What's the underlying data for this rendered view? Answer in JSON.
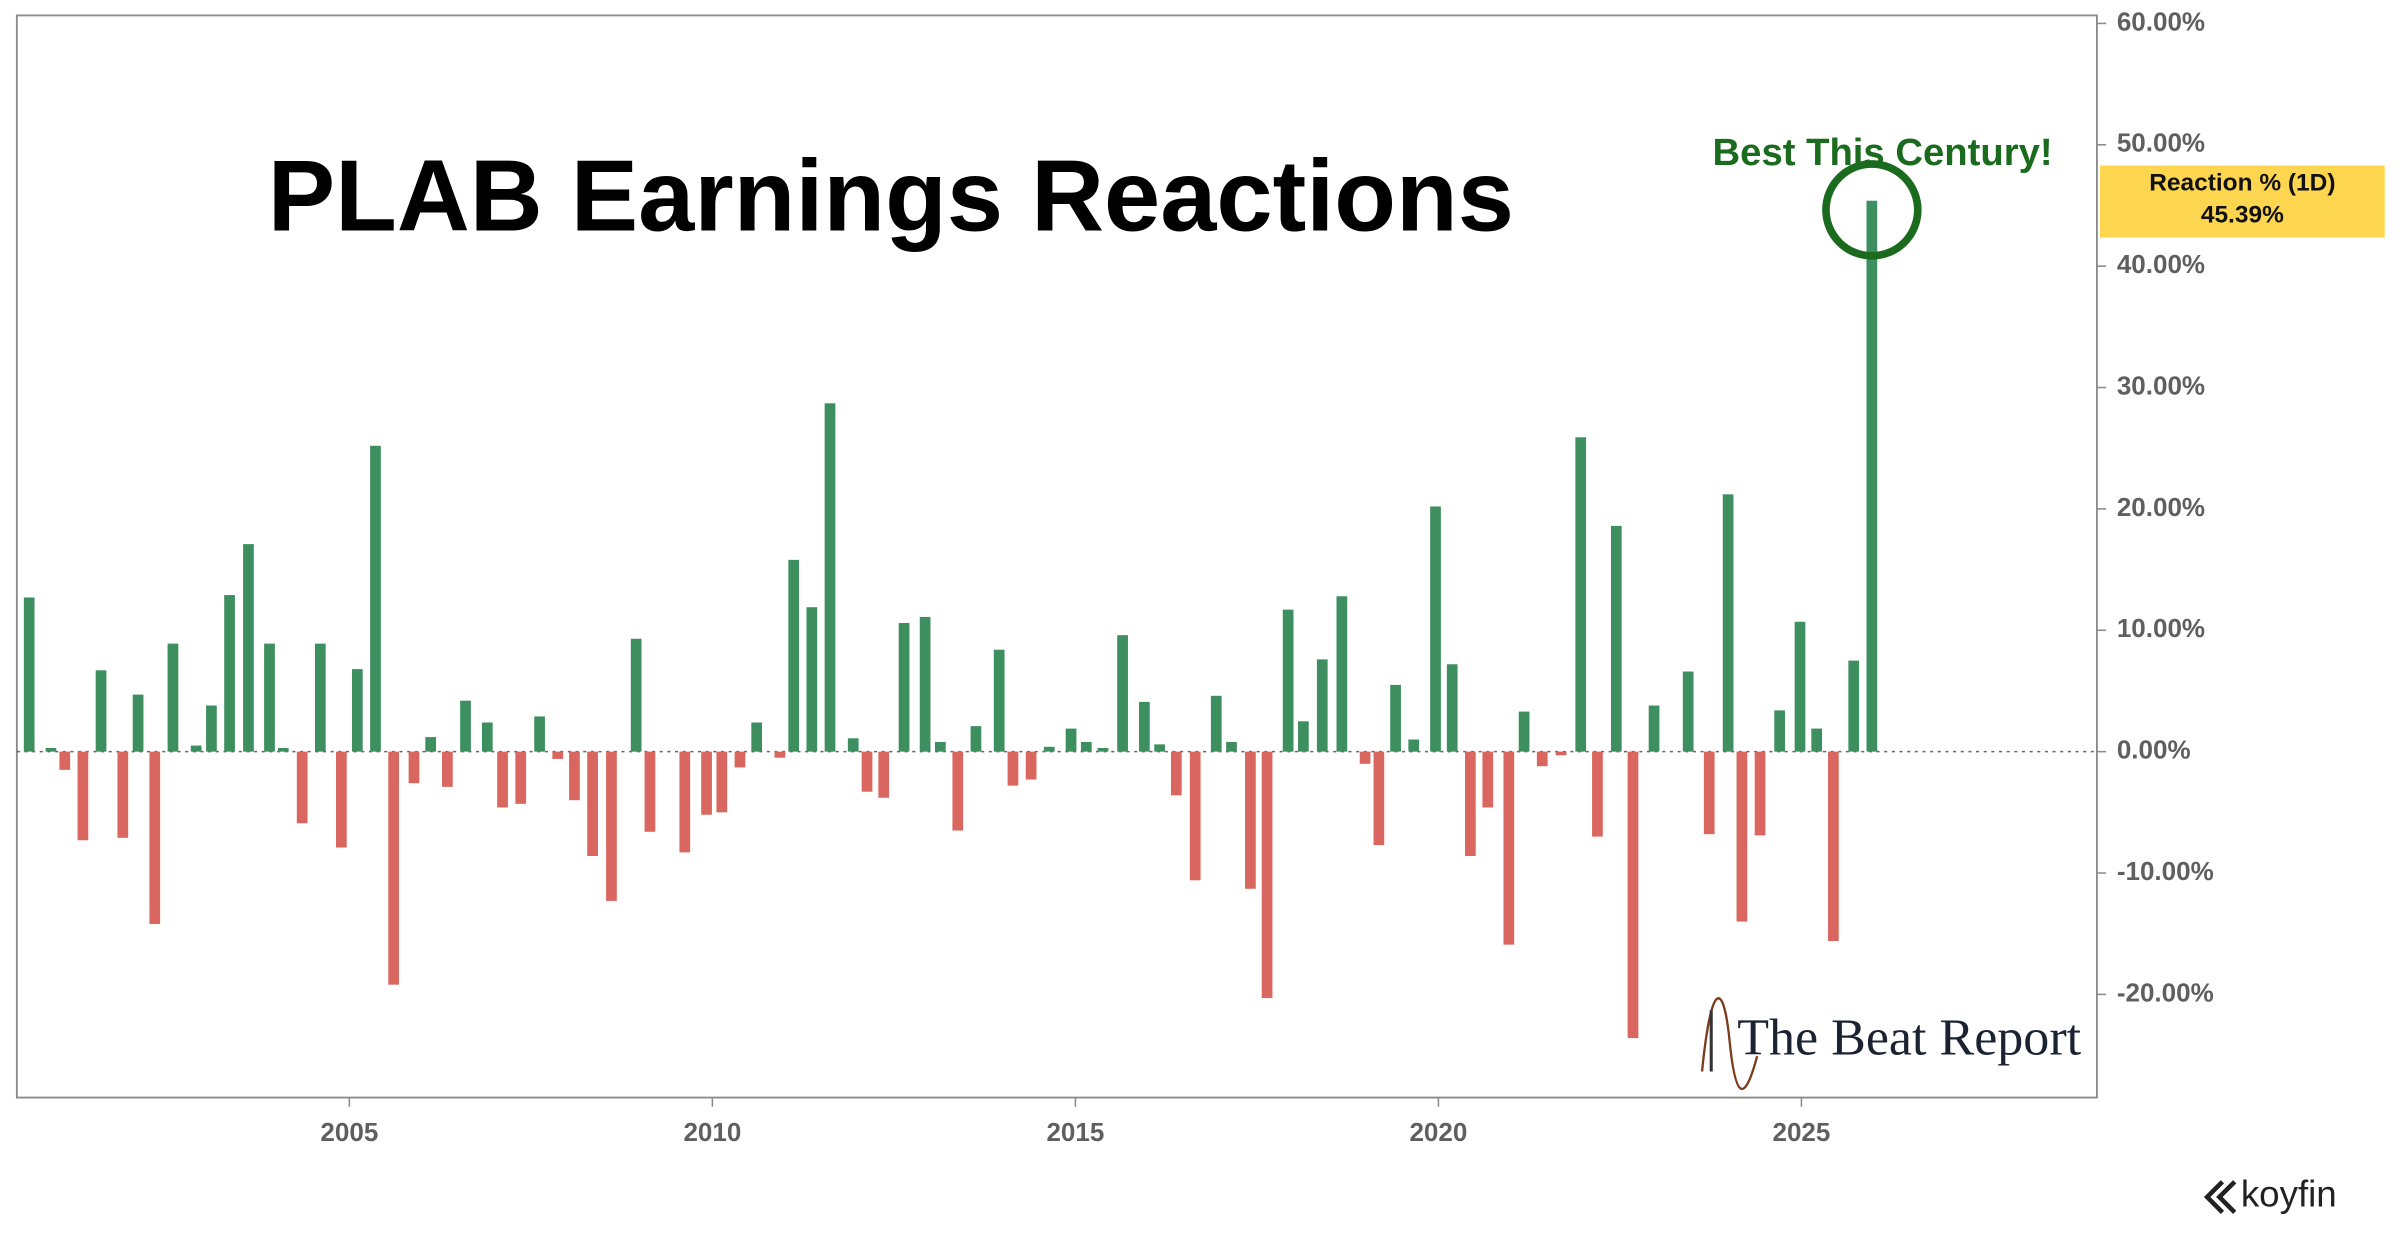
{
  "chart_data": {
    "type": "bar",
    "title": "PLAB Earnings Reactions",
    "annotation": "Best This Century!",
    "marker": {
      "label": "Reaction % (1D)",
      "value": 45.39,
      "value_label": "45.39%"
    },
    "watermark": "The Beat Report",
    "source": "koyfin",
    "positive_color": "#3d8f5f",
    "negative_color": "#d9665f",
    "annotation_color": "#1b6b1f",
    "marker_color": "#fdd54f",
    "xlim": [
      2000.42,
      2029.07
    ],
    "xticks": [
      2005,
      2010,
      2015,
      2020,
      2025
    ],
    "ylim": [
      -28.5,
      60.66
    ],
    "yticks": [
      {
        "value": -20,
        "label": "-20.00%"
      },
      {
        "value": -10,
        "label": "-10.00%"
      },
      {
        "value": 0,
        "label": "0.00%"
      },
      {
        "value": 10,
        "label": "10.00%"
      },
      {
        "value": 20,
        "label": "20.00%"
      },
      {
        "value": 30,
        "label": "30.00%"
      },
      {
        "value": 40,
        "label": "40.00%"
      },
      {
        "value": 50,
        "label": "50.00%"
      },
      {
        "value": 60,
        "label": "60.00%"
      }
    ],
    "x": [
      2000.59,
      2000.89,
      2001.08,
      2001.33,
      2001.58,
      2001.88,
      2002.09,
      2002.32,
      2002.57,
      2002.89,
      2003.1,
      2003.35,
      2003.61,
      2003.9,
      2004.09,
      2004.35,
      2004.6,
      2004.89,
      2005.11,
      2005.36,
      2005.61,
      2005.89,
      2006.12,
      2006.35,
      2006.6,
      2006.9,
      2007.11,
      2007.36,
      2007.62,
      2007.87,
      2008.1,
      2008.35,
      2008.61,
      2008.95,
      2009.14,
      2009.62,
      2009.92,
      2010.13,
      2010.38,
      2010.61,
      2010.93,
      2011.12,
      2011.37,
      2011.62,
      2011.94,
      2012.13,
      2012.36,
      2012.64,
      2012.93,
      2013.14,
      2013.38,
      2013.63,
      2013.95,
      2014.14,
      2014.39,
      2014.64,
      2014.94,
      2015.15,
      2015.38,
      2015.65,
      2015.95,
      2016.16,
      2016.39,
      2016.65,
      2016.94,
      2017.15,
      2017.41,
      2017.64,
      2017.93,
      2018.14,
      2018.4,
      2018.67,
      2018.99,
      2019.18,
      2019.41,
      2019.66,
      2019.96,
      2020.19,
      2020.44,
      2020.68,
      2020.97,
      2021.18,
      2021.43,
      2021.69,
      2021.96,
      2022.19,
      2022.45,
      2022.68,
      2022.97,
      2023.44,
      2023.73,
      2023.99,
      2024.18,
      2024.43,
      2024.7,
      2024.98,
      2025.21,
      2025.44,
      2025.72,
      2025.97
    ],
    "values": [
      12.7,
      0.3,
      -1.5,
      -7.3,
      6.7,
      -7.1,
      4.7,
      -14.2,
      8.9,
      0.5,
      3.8,
      12.9,
      17.1,
      8.9,
      0.3,
      -5.9,
      8.9,
      -7.9,
      6.8,
      25.2,
      -19.2,
      -2.6,
      1.2,
      -2.9,
      4.2,
      2.4,
      -4.6,
      -4.3,
      2.9,
      -0.6,
      -4.0,
      -8.6,
      -12.3,
      9.3,
      -6.6,
      -8.3,
      -5.2,
      -5.0,
      -1.3,
      2.4,
      -0.5,
      15.8,
      11.9,
      28.7,
      1.1,
      -3.3,
      -3.8,
      10.6,
      11.1,
      0.8,
      -6.5,
      2.1,
      8.4,
      -2.8,
      -2.3,
      0.4,
      1.9,
      0.8,
      0.3,
      9.6,
      4.1,
      0.6,
      -3.6,
      -10.6,
      4.6,
      0.8,
      -11.3,
      -20.3,
      11.7,
      2.5,
      7.6,
      12.8,
      -1.0,
      -7.7,
      5.5,
      1.0,
      20.2,
      7.2,
      -8.6,
      -4.6,
      -15.9,
      3.3,
      -1.2,
      -0.3,
      25.9,
      -7.0,
      18.6,
      -23.6,
      3.8,
      6.6,
      -6.8,
      21.2,
      -14.0,
      -6.9,
      3.4,
      10.7,
      1.9,
      -15.6,
      7.5,
      45.39
    ]
  }
}
